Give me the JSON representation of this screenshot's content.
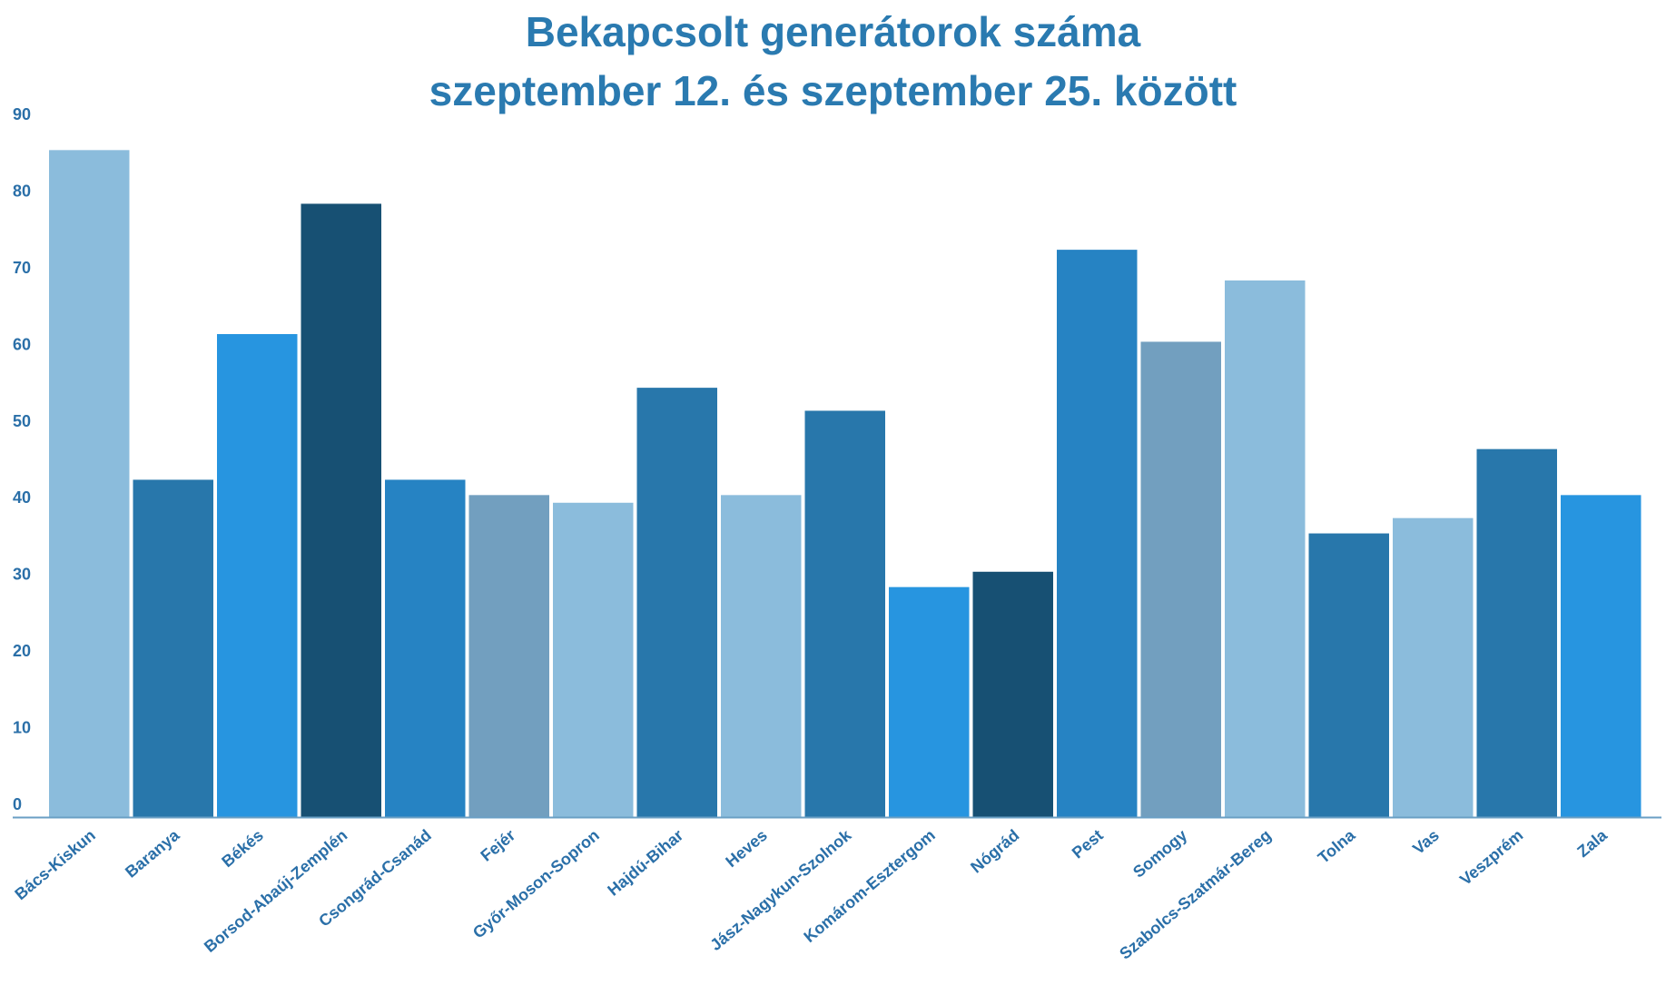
{
  "chart_data": {
    "type": "bar",
    "title": "Bekapcsolt generátorok száma",
    "subtitle": "szeptember 12. és szeptember 25. között",
    "xlabel": "",
    "ylabel": "",
    "ylim": [
      0,
      90
    ],
    "yticks": [
      0,
      10,
      20,
      30,
      40,
      50,
      60,
      70,
      80,
      90
    ],
    "grid": false,
    "categories": [
      "Bács-Kiskun",
      "Baranya",
      "Békés",
      "Borsod-Abaúj-Zemplén",
      "Csongrád-Csanád",
      "Fejér",
      "Győr-Moson-Sopron",
      "Hajdú-Bihar",
      "Heves",
      "Jász-Nagykun-Szolnok",
      "Komárom-Esztergom",
      "Nógrád",
      "Pest",
      "Somogy",
      "Szabolcs-Szatmár-Bereg",
      "Tolna",
      "Vas",
      "Veszprém",
      "Zala"
    ],
    "values": [
      87,
      44,
      63,
      80,
      44,
      42,
      41,
      56,
      42,
      53,
      30,
      32,
      74,
      62,
      70,
      37,
      39,
      48,
      42
    ],
    "colors": [
      "#8bbcdc",
      "#2877ab",
      "#2795e0",
      "#175073",
      "#2683c3",
      "#729fbf",
      "#8bbcdc",
      "#2877ab",
      "#8bbcdc",
      "#2877ab",
      "#2795e0",
      "#175073",
      "#2683c3",
      "#729fbf",
      "#8bbcdc",
      "#2877ab",
      "#8bbcdc",
      "#2877ab",
      "#2795e0"
    ],
    "axis_color": "#6a9fc4"
  }
}
